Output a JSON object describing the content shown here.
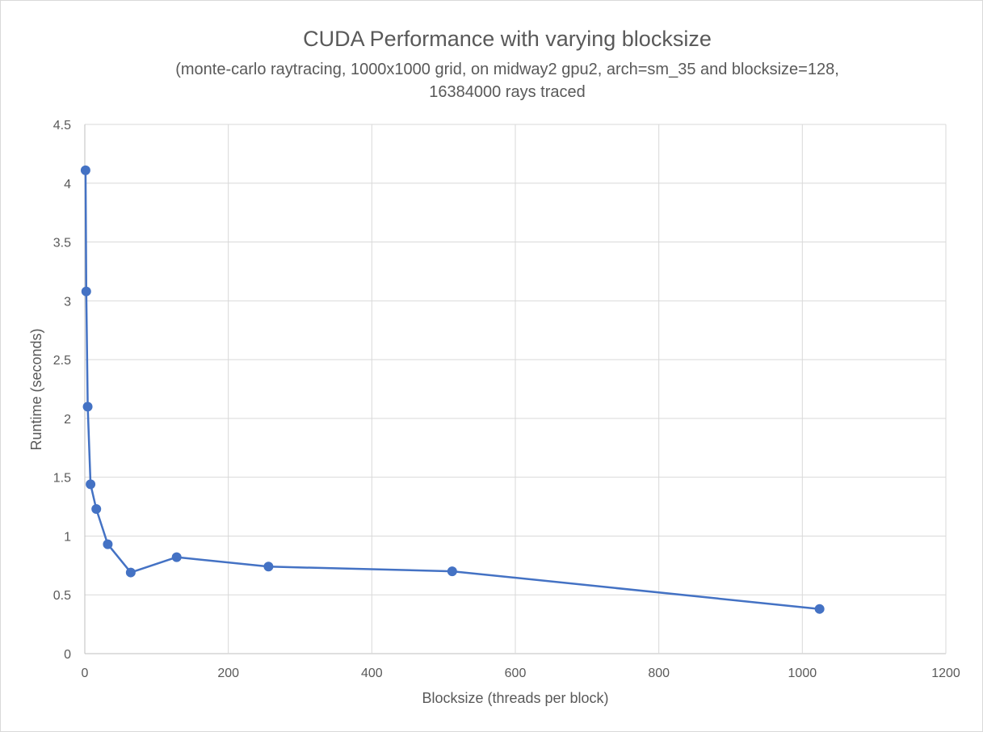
{
  "chart_data": {
    "type": "scatter",
    "title": "CUDA Performance  with varying blocksize",
    "subtitle_lines": [
      "(monte-carlo raytracing, 1000x1000 grid, on midway2 gpu2, arch=sm_35 and blocksize=128,",
      "16384000 rays traced"
    ],
    "xlabel": "Blocksize (threads per block)",
    "ylabel": "Runtime (seconds)",
    "xlim": [
      0,
      1200
    ],
    "ylim": [
      0,
      4.5
    ],
    "x_ticks": [
      "0",
      "200",
      "400",
      "600",
      "800",
      "1000",
      "1200"
    ],
    "y_ticks": [
      "0",
      "0.5",
      "1",
      "1.5",
      "2",
      "2.5",
      "3",
      "3.5",
      "4",
      "4.5"
    ],
    "x_tick_values": [
      0,
      200,
      400,
      600,
      800,
      1000,
      1200
    ],
    "y_tick_values": [
      0,
      0.5,
      1,
      1.5,
      2,
      2.5,
      3,
      3.5,
      4,
      4.5
    ],
    "grid": true,
    "legend": "none",
    "series": [
      {
        "color": "#4472c4",
        "x": [
          1,
          2,
          4,
          8,
          16,
          32,
          64,
          128,
          256,
          512,
          1024
        ],
        "y": [
          4.11,
          3.08,
          2.1,
          1.44,
          1.23,
          0.93,
          0.69,
          0.82,
          0.74,
          0.7,
          0.38
        ]
      }
    ]
  }
}
